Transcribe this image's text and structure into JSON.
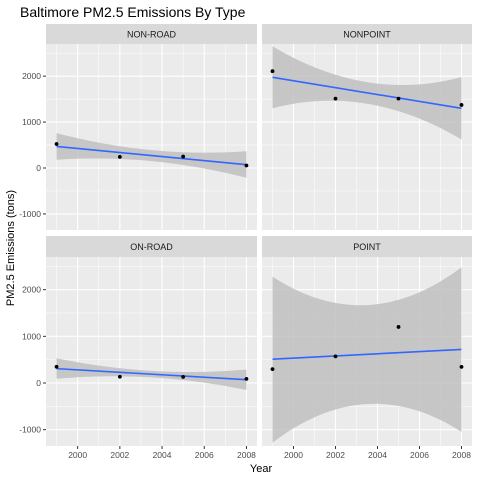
{
  "chart_data": {
    "type": "scatter",
    "title": "Baltimore PM2.5 Emissions By Type",
    "xlabel": "Year",
    "ylabel": "PM2.5 Emissions (tons)",
    "xlim": [
      1998.5,
      2008.5
    ],
    "ylim": [
      -1350,
      2700
    ],
    "x_ticks": [
      2000,
      2002,
      2004,
      2006,
      2008
    ],
    "y_ticks": [
      -1000,
      0,
      1000,
      2000
    ],
    "grid": true,
    "colors": {
      "panel_bg": "#ebebeb",
      "grid": "#ffffff",
      "strip_bg": "#d9d9d9",
      "fit_line": "#3366ff",
      "ribbon": "#bfbfbf",
      "point": "#000000"
    },
    "panels": [
      {
        "label": "NON-ROAD",
        "points": [
          {
            "x": 1999,
            "y": 522
          },
          {
            "x": 2002,
            "y": 241
          },
          {
            "x": 2005,
            "y": 249
          },
          {
            "x": 2008,
            "y": 55
          }
        ],
        "fit": {
          "start": 469,
          "end": 73
        },
        "band": [
          {
            "x": 1999,
            "lo": 180,
            "hi": 760
          },
          {
            "x": 2003.5,
            "lo": 150,
            "hi": 390
          },
          {
            "x": 2008,
            "lo": -215,
            "hi": 365
          }
        ]
      },
      {
        "label": "NONPOINT",
        "points": [
          {
            "x": 1999,
            "y": 2108
          },
          {
            "x": 2002,
            "y": 1510
          },
          {
            "x": 2005,
            "y": 1510
          },
          {
            "x": 2008,
            "y": 1373
          }
        ],
        "fit": {
          "start": 1975,
          "end": 1300
        },
        "band": [
          {
            "x": 1999,
            "lo": 1300,
            "hi": 2650
          },
          {
            "x": 2003.5,
            "lo": 1400,
            "hi": 1870
          },
          {
            "x": 2008,
            "lo": 620,
            "hi": 1980
          }
        ]
      },
      {
        "label": "ON-ROAD",
        "points": [
          {
            "x": 1999,
            "y": 347
          },
          {
            "x": 2002,
            "y": 134
          },
          {
            "x": 2005,
            "y": 130
          },
          {
            "x": 2008,
            "y": 88
          }
        ],
        "fit": {
          "start": 308,
          "end": 70
        },
        "band": [
          {
            "x": 1999,
            "lo": 90,
            "hi": 530
          },
          {
            "x": 2003.5,
            "lo": 120,
            "hi": 260
          },
          {
            "x": 2008,
            "lo": -150,
            "hi": 290
          }
        ]
      },
      {
        "label": "POINT",
        "points": [
          {
            "x": 1999,
            "y": 296
          },
          {
            "x": 2002,
            "y": 570
          },
          {
            "x": 2005,
            "y": 1201
          },
          {
            "x": 2008,
            "y": 345
          }
        ],
        "fit": {
          "start": 510,
          "end": 720
        },
        "band": [
          {
            "x": 1999,
            "lo": -1280,
            "hi": 2280
          },
          {
            "x": 2003.5,
            "lo": -450,
            "hi": 1670
          },
          {
            "x": 2008,
            "lo": -1050,
            "hi": 2480
          }
        ]
      }
    ]
  }
}
